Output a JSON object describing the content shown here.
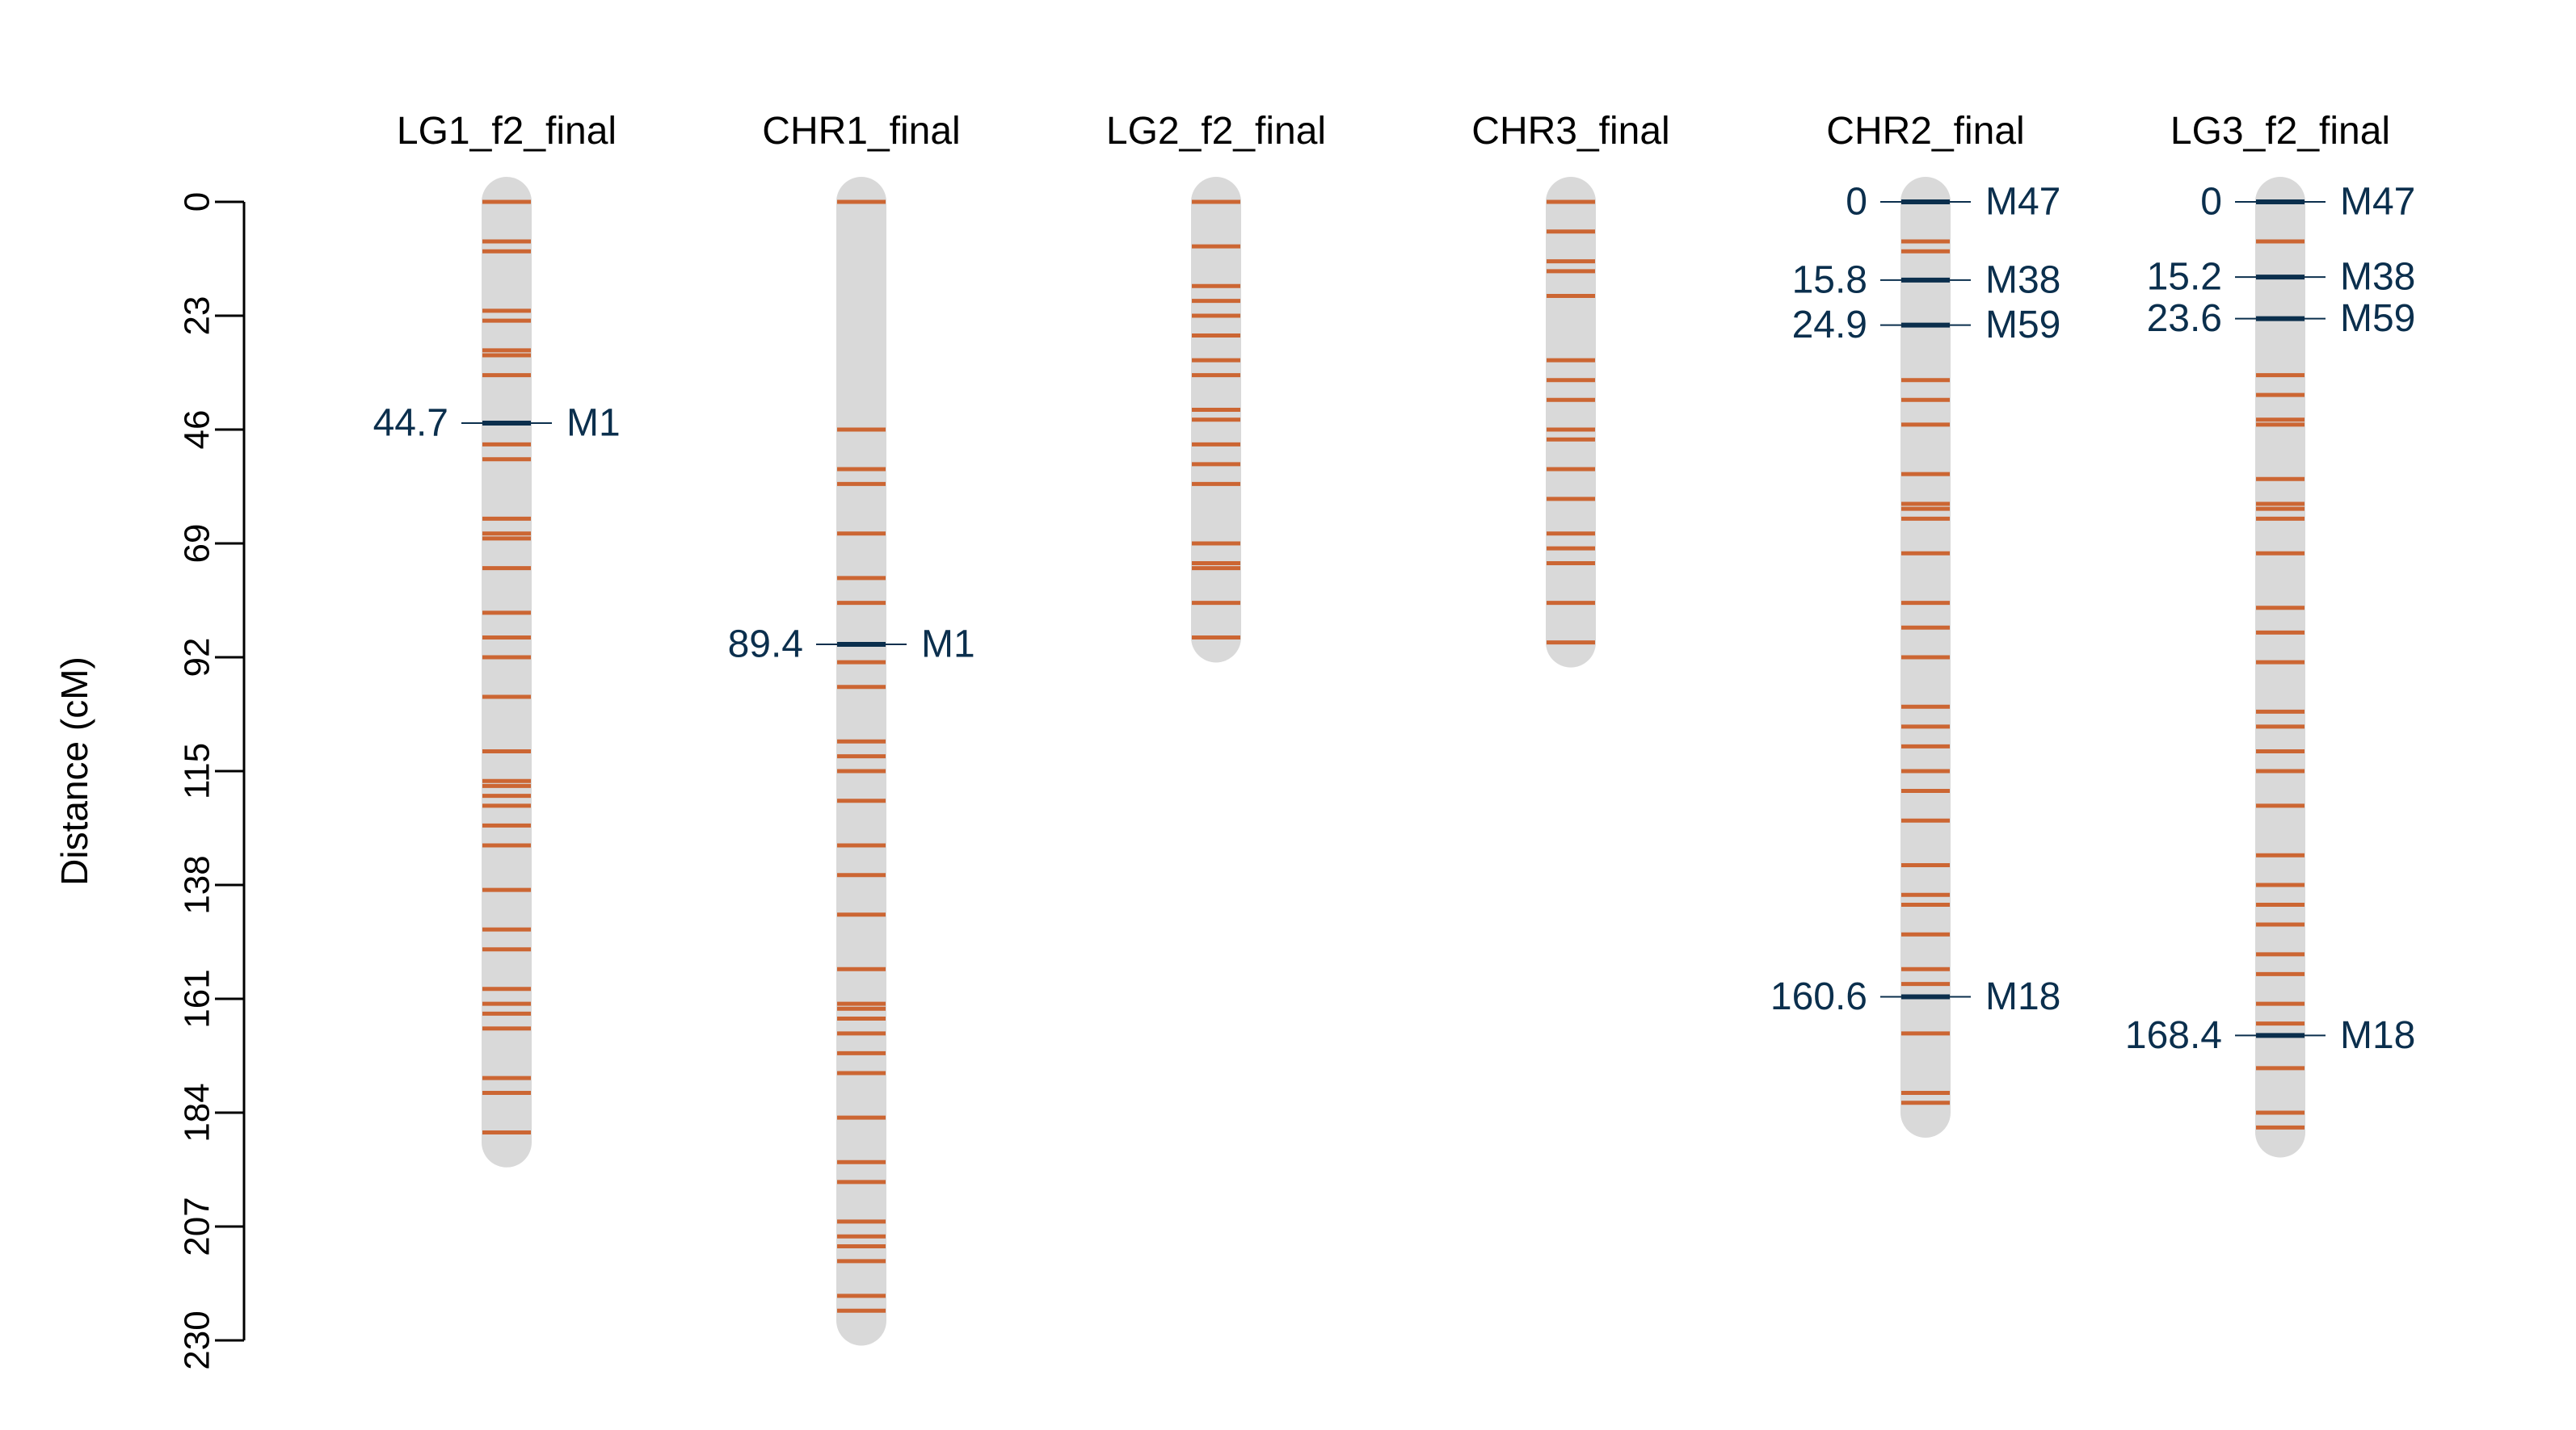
{
  "colors": {
    "background": "#ffffff",
    "chromosome": "#d9d9d9",
    "marker": "#cc6633",
    "highlight": "#0b2f4d",
    "axis": "#000000"
  },
  "chart_data": {
    "type": "genetic-linkage-map",
    "ylabel": "Distance (cM)",
    "ylim": [
      0,
      230
    ],
    "y_reversed": true,
    "y_ticks": [
      0,
      23,
      46,
      69,
      92,
      115,
      138,
      161,
      184,
      207,
      230
    ],
    "groups": [
      {
        "name": "LG1_f2_final",
        "length": 190,
        "markers": [
          0,
          8,
          10,
          22,
          24,
          30,
          31,
          35,
          44.7,
          49,
          52,
          64,
          67,
          68,
          74,
          83,
          88,
          92,
          100,
          111,
          117,
          118,
          120,
          122,
          126,
          130,
          139,
          147,
          151,
          159,
          162,
          164,
          167,
          177,
          180,
          188
        ],
        "highlights": [
          {
            "position": 44.7,
            "position_label": "44.7",
            "name": "M1"
          }
        ]
      },
      {
        "name": "CHR1_final",
        "length": 226,
        "markers": [
          0,
          46,
          54,
          57,
          67,
          76,
          81,
          89.4,
          93,
          98,
          109,
          112,
          115,
          121,
          130,
          136,
          144,
          155,
          162,
          163,
          165,
          168,
          172,
          176,
          185,
          194,
          198,
          206,
          209,
          211,
          214,
          221,
          224
        ],
        "highlights": [
          {
            "position": 89.4,
            "position_label": "89.4",
            "name": "M1"
          }
        ]
      },
      {
        "name": "LG2_f2_final",
        "length": 88,
        "markers": [
          0,
          9,
          17,
          20,
          23,
          27,
          32,
          35,
          42,
          44,
          49,
          53,
          57,
          69,
          73,
          74,
          81,
          88
        ],
        "highlights": []
      },
      {
        "name": "CHR3_final",
        "length": 89,
        "markers": [
          0,
          6,
          12,
          14,
          19,
          32,
          36,
          40,
          46,
          48,
          54,
          60,
          67,
          70,
          73,
          81,
          89
        ],
        "highlights": []
      },
      {
        "name": "CHR2_final",
        "length": 184,
        "markers": [
          0,
          8,
          10,
          15.8,
          24.9,
          36,
          40,
          45,
          55,
          61,
          62,
          64,
          71,
          81,
          86,
          92,
          102,
          106,
          110,
          115,
          119,
          125,
          134,
          140,
          142,
          148,
          155,
          158,
          160.6,
          168,
          180,
          182
        ],
        "highlights": [
          {
            "position": 0,
            "position_label": "0",
            "name": "M47"
          },
          {
            "position": 15.8,
            "position_label": "15.8",
            "name": "M38"
          },
          {
            "position": 24.9,
            "position_label": "24.9",
            "name": "M59"
          },
          {
            "position": 160.6,
            "position_label": "160.6",
            "name": "M18"
          }
        ]
      },
      {
        "name": "LG3_f2_final",
        "length": 188,
        "markers": [
          0,
          8,
          15.2,
          23.6,
          35,
          39,
          44,
          45,
          56,
          61,
          62,
          64,
          71,
          82,
          87,
          93,
          103,
          106,
          111,
          115,
          122,
          132,
          138,
          142,
          146,
          152,
          156,
          162,
          166,
          168.4,
          175,
          184,
          187
        ],
        "highlights": [
          {
            "position": 0,
            "position_label": "0",
            "name": "M47"
          },
          {
            "position": 15.2,
            "position_label": "15.2",
            "name": "M38"
          },
          {
            "position": 23.6,
            "position_label": "23.6",
            "name": "M59"
          },
          {
            "position": 168.4,
            "position_label": "168.4",
            "name": "M18"
          }
        ]
      }
    ]
  }
}
